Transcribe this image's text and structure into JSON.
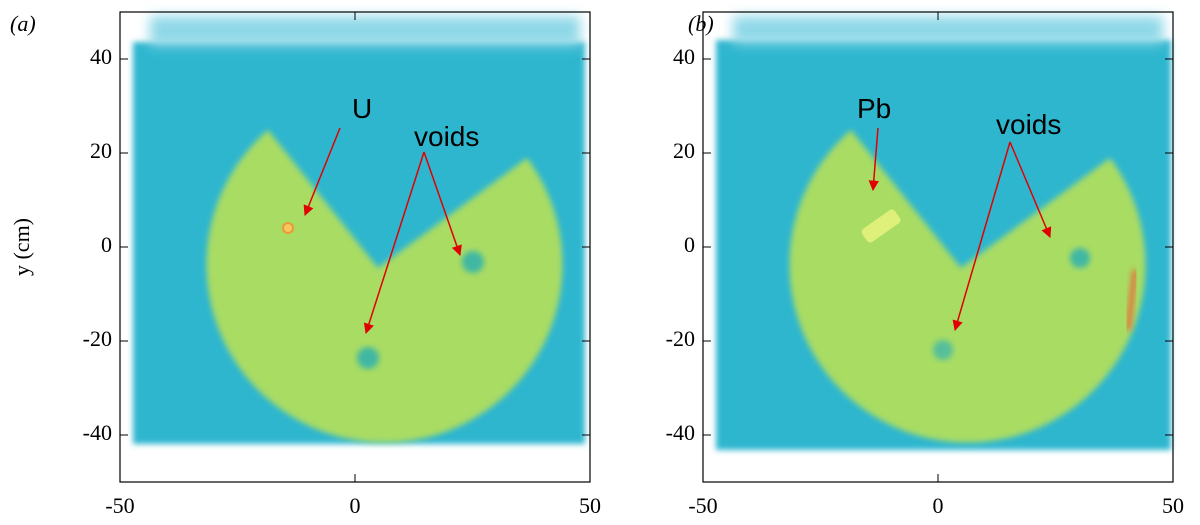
{
  "chart_data": [
    {
      "type": "image",
      "panel_label": "(a)",
      "ylabel": "y (cm)",
      "xlim": [
        -50,
        50
      ],
      "ylim": [
        -50,
        50
      ],
      "xticks": [
        -50,
        0,
        50
      ],
      "yticks": [
        -40,
        -20,
        0,
        20,
        40
      ],
      "annotations": [
        "U",
        "voids"
      ]
    },
    {
      "type": "image",
      "panel_label": "(b)",
      "xlim": [
        -50,
        50
      ],
      "ylim": [
        -50,
        50
      ],
      "xticks": [
        -50,
        0,
        50
      ],
      "yticks": [
        -40,
        -20,
        0,
        20,
        40
      ],
      "annotations": [
        "Pb",
        "voids"
      ]
    }
  ]
}
